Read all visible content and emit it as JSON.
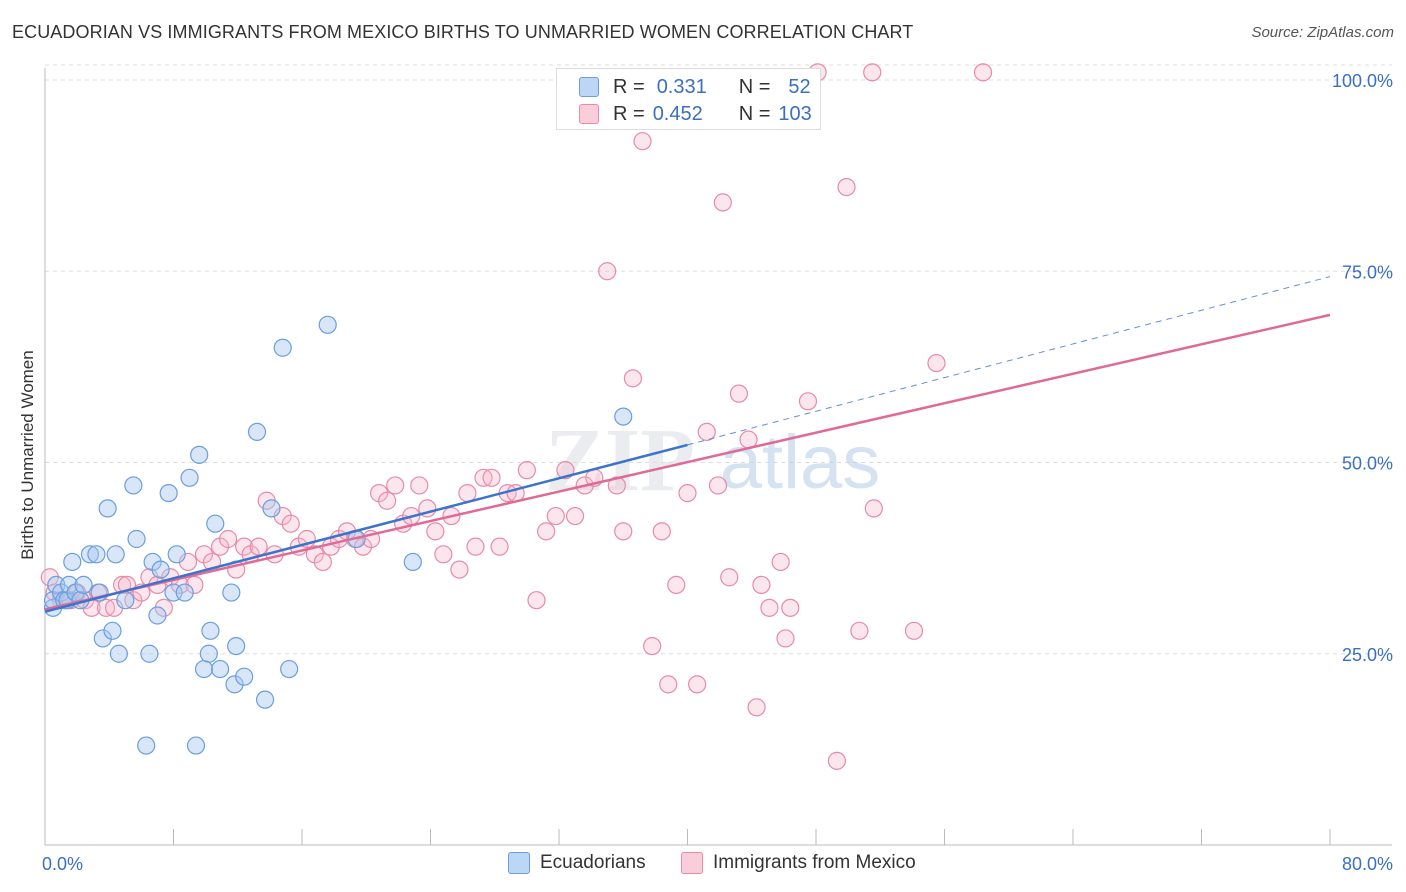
{
  "header": {
    "title": "ECUADORIAN VS IMMIGRANTS FROM MEXICO BIRTHS TO UNMARRIED WOMEN CORRELATION CHART",
    "source": "Source: ZipAtlas.com"
  },
  "watermark": {
    "zip": "ZIP",
    "atlas": "atlas"
  },
  "legend": {
    "series1": {
      "r_label": "R =",
      "r_value": "0.331",
      "n_label": "N =",
      "n_value": "52"
    },
    "series2": {
      "r_label": "R =",
      "r_value": "0.452",
      "n_label": "N =",
      "n_value": "103"
    }
  },
  "bottom_legend": {
    "series1": "Ecuadorians",
    "series2": "Immigrants from Mexico"
  },
  "colors": {
    "blue_fill": "#a8c8f0",
    "blue_stroke": "#6a9ee0",
    "blue_line": "#3a74cc",
    "pink_fill": "#f5b8cc",
    "pink_stroke": "#e88aa8",
    "pink_line": "#e06a96",
    "axis_text": "#3a6fc4",
    "grid": "#dddddd"
  },
  "chart_data": {
    "type": "scatter",
    "title": "ECUADORIAN VS IMMIGRANTS FROM MEXICO BIRTHS TO UNMARRIED WOMEN CORRELATION CHART",
    "xlabel": "",
    "ylabel": "Births to Unmarried Women",
    "xlim": [
      0,
      80
    ],
    "ylim": [
      0,
      100
    ],
    "x_tick_labels": {
      "0": "0.0%",
      "80": "80.0%"
    },
    "y_ticks": [
      25,
      50,
      75,
      100
    ],
    "y_tick_labels": [
      "25.0%",
      "50.0%",
      "75.0%",
      "100.0%"
    ],
    "grid": true,
    "legend_placement": "top-center",
    "series": [
      {
        "name": "Ecuadorians",
        "r": 0.331,
        "n": 52,
        "trend": {
          "x0": 0,
          "y0": 30.5,
          "x1": 40,
          "y1": 52.3,
          "x_dash_end": 80,
          "y_dash_end": 74.3
        },
        "points": [
          [
            0.5,
            31
          ],
          [
            0.5,
            32
          ],
          [
            0.7,
            34
          ],
          [
            1.0,
            33
          ],
          [
            1.2,
            32
          ],
          [
            1.4,
            32
          ],
          [
            1.5,
            34
          ],
          [
            1.7,
            37
          ],
          [
            1.9,
            33
          ],
          [
            2.2,
            32
          ],
          [
            2.4,
            34
          ],
          [
            2.8,
            38
          ],
          [
            3.2,
            38
          ],
          [
            3.4,
            33
          ],
          [
            3.6,
            27
          ],
          [
            3.9,
            44
          ],
          [
            4.2,
            28
          ],
          [
            4.4,
            38
          ],
          [
            4.6,
            25
          ],
          [
            5.0,
            32
          ],
          [
            5.5,
            47
          ],
          [
            5.7,
            40
          ],
          [
            6.3,
            13
          ],
          [
            6.5,
            25
          ],
          [
            6.7,
            37
          ],
          [
            7.0,
            30
          ],
          [
            7.2,
            36
          ],
          [
            7.7,
            46
          ],
          [
            8.0,
            33
          ],
          [
            8.2,
            38
          ],
          [
            8.7,
            33
          ],
          [
            9.0,
            48
          ],
          [
            9.4,
            13
          ],
          [
            9.6,
            51
          ],
          [
            9.9,
            23
          ],
          [
            10.2,
            25
          ],
          [
            10.3,
            28
          ],
          [
            10.6,
            42
          ],
          [
            10.9,
            23
          ],
          [
            11.6,
            33
          ],
          [
            11.8,
            21
          ],
          [
            11.9,
            26
          ],
          [
            12.4,
            22
          ],
          [
            13.2,
            54
          ],
          [
            13.7,
            19
          ],
          [
            14.1,
            44
          ],
          [
            14.8,
            65
          ],
          [
            15.2,
            23
          ],
          [
            17.6,
            68
          ],
          [
            19.4,
            40
          ],
          [
            22.9,
            37
          ],
          [
            36.0,
            56
          ]
        ]
      },
      {
        "name": "Immigrants from Mexico",
        "r": 0.452,
        "n": 103,
        "trend": {
          "x0": 0,
          "y0": 30.8,
          "x1": 80,
          "y1": 69.3
        },
        "points": [
          [
            0.3,
            35
          ],
          [
            0.6,
            33
          ],
          [
            1.0,
            32
          ],
          [
            1.3,
            32
          ],
          [
            1.6,
            32
          ],
          [
            2.0,
            33
          ],
          [
            2.5,
            32
          ],
          [
            2.9,
            31
          ],
          [
            3.3,
            33
          ],
          [
            3.8,
            31
          ],
          [
            4.3,
            31
          ],
          [
            4.8,
            34
          ],
          [
            5.1,
            34
          ],
          [
            5.5,
            32
          ],
          [
            6.0,
            33
          ],
          [
            6.5,
            35
          ],
          [
            7.0,
            34
          ],
          [
            7.4,
            31
          ],
          [
            7.8,
            35
          ],
          [
            8.4,
            34
          ],
          [
            8.9,
            37
          ],
          [
            9.3,
            34
          ],
          [
            9.9,
            38
          ],
          [
            10.4,
            37
          ],
          [
            10.9,
            39
          ],
          [
            11.4,
            40
          ],
          [
            11.9,
            36
          ],
          [
            12.4,
            39
          ],
          [
            12.8,
            38
          ],
          [
            13.3,
            39
          ],
          [
            13.8,
            45
          ],
          [
            14.3,
            38
          ],
          [
            14.8,
            43
          ],
          [
            15.3,
            42
          ],
          [
            15.8,
            39
          ],
          [
            16.3,
            40
          ],
          [
            16.8,
            38
          ],
          [
            17.3,
            37
          ],
          [
            17.8,
            39
          ],
          [
            18.3,
            40
          ],
          [
            18.8,
            41
          ],
          [
            19.3,
            40
          ],
          [
            19.8,
            39
          ],
          [
            20.3,
            40
          ],
          [
            20.8,
            46
          ],
          [
            21.3,
            45
          ],
          [
            21.8,
            47
          ],
          [
            22.3,
            42
          ],
          [
            22.8,
            43
          ],
          [
            23.3,
            47
          ],
          [
            23.8,
            44
          ],
          [
            24.3,
            41
          ],
          [
            24.8,
            38
          ],
          [
            25.3,
            43
          ],
          [
            25.8,
            36
          ],
          [
            26.3,
            46
          ],
          [
            26.8,
            39
          ],
          [
            27.3,
            48
          ],
          [
            27.8,
            48
          ],
          [
            28.3,
            39
          ],
          [
            28.8,
            46
          ],
          [
            29.3,
            46
          ],
          [
            30.0,
            49
          ],
          [
            30.6,
            32
          ],
          [
            31.2,
            41
          ],
          [
            31.8,
            43
          ],
          [
            32.4,
            49
          ],
          [
            33.0,
            43
          ],
          [
            33.6,
            47
          ],
          [
            34.2,
            48
          ],
          [
            35.0,
            75
          ],
          [
            35.6,
            47
          ],
          [
            36.0,
            41
          ],
          [
            36.6,
            61
          ],
          [
            37.2,
            92
          ],
          [
            37.8,
            26
          ],
          [
            38.4,
            41
          ],
          [
            38.8,
            21
          ],
          [
            39.3,
            34
          ],
          [
            40.0,
            46
          ],
          [
            40.6,
            21
          ],
          [
            41.2,
            54
          ],
          [
            41.9,
            47
          ],
          [
            42.2,
            84
          ],
          [
            42.6,
            35
          ],
          [
            43.2,
            59
          ],
          [
            43.8,
            53
          ],
          [
            44.3,
            18
          ],
          [
            44.6,
            34
          ],
          [
            45.1,
            31
          ],
          [
            45.8,
            37
          ],
          [
            46.1,
            27
          ],
          [
            46.4,
            31
          ],
          [
            47.5,
            58
          ],
          [
            48.1,
            101
          ],
          [
            49.3,
            11
          ],
          [
            49.9,
            86
          ],
          [
            50.7,
            28
          ],
          [
            51.5,
            101
          ],
          [
            51.6,
            44
          ],
          [
            54.1,
            28
          ],
          [
            55.5,
            63
          ],
          [
            58.4,
            101
          ]
        ]
      }
    ]
  }
}
